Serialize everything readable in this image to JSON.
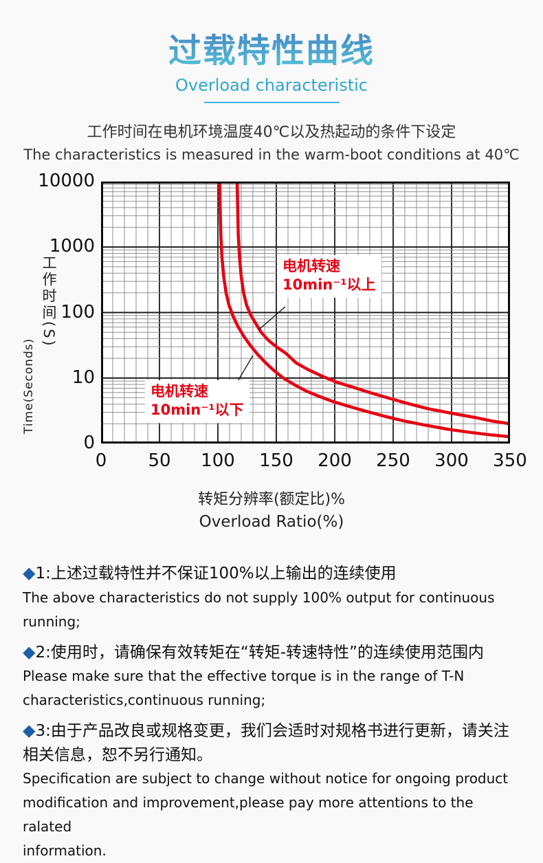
{
  "header": {
    "title": "过载特性曲线",
    "subtitle": "Overload characteristic"
  },
  "intro": {
    "line_cn": "工作时间在电机环境温度40℃以及热起动的条件下设定",
    "line_en": "The characteristics is measured in the warm-boot conditions at 40℃"
  },
  "chart_data": {
    "type": "line",
    "xlabel_cn": "转矩分辨率(额定比)%",
    "xlabel_en": "Overload Ratio(%)",
    "ylabel_cn": "工作时间(S)",
    "ylabel_en": "Time(Seconds)",
    "x_axis": {
      "min": 0,
      "max": 350,
      "major_step": 50,
      "minor_step": 10,
      "tick_labels": [
        "0",
        "50",
        "100",
        "150",
        "200",
        "250",
        "300",
        "350"
      ]
    },
    "y_axis": {
      "scale": "log",
      "min": 1,
      "max": 10000,
      "decades": 4,
      "tick_labels": [
        "10000",
        "1000",
        "100",
        "10",
        "0"
      ]
    },
    "grid": true,
    "curve_color": "#e60012",
    "grid_minor_color": "#8f8f8f",
    "grid_major_color": "#1a1a1a",
    "series": [
      {
        "name": "电机转速10min⁻¹以上",
        "points": [
          [
            116.5,
            10000
          ],
          [
            117,
            3500
          ],
          [
            117.5,
            1500
          ],
          [
            118.5,
            700
          ],
          [
            120,
            350
          ],
          [
            122,
            200
          ],
          [
            124.5,
            130
          ],
          [
            128,
            92
          ],
          [
            132,
            70
          ],
          [
            137,
            50
          ],
          [
            143,
            38
          ],
          [
            150,
            30
          ],
          [
            158,
            24
          ],
          [
            167,
            17
          ],
          [
            177,
            13.5
          ],
          [
            190,
            10.5
          ],
          [
            202,
            8.6
          ],
          [
            216,
            7.2
          ],
          [
            230,
            6.0
          ],
          [
            245,
            5.0
          ],
          [
            262,
            4.1
          ],
          [
            280,
            3.4
          ],
          [
            300,
            2.9
          ],
          [
            320,
            2.5
          ],
          [
            335,
            2.2
          ],
          [
            350,
            2.0
          ]
        ]
      },
      {
        "name": "电机转速10min⁻¹以下",
        "points": [
          [
            101.5,
            10000
          ],
          [
            102,
            3500
          ],
          [
            102.5,
            1500
          ],
          [
            103.5,
            700
          ],
          [
            105,
            350
          ],
          [
            107,
            200
          ],
          [
            109.5,
            130
          ],
          [
            113,
            88
          ],
          [
            117,
            62
          ],
          [
            122,
            44
          ],
          [
            128,
            31
          ],
          [
            134,
            23
          ],
          [
            141,
            17
          ],
          [
            148,
            13
          ],
          [
            156,
            10
          ],
          [
            165,
            8
          ],
          [
            175,
            6.4
          ],
          [
            186,
            5.3
          ],
          [
            198,
            4.4
          ],
          [
            212,
            3.7
          ],
          [
            227,
            3.1
          ],
          [
            243,
            2.6
          ],
          [
            260,
            2.2
          ],
          [
            278,
            1.9
          ],
          [
            297,
            1.65
          ],
          [
            316,
            1.48
          ],
          [
            333,
            1.36
          ],
          [
            350,
            1.27
          ]
        ]
      }
    ],
    "annotations": [
      {
        "line1": "电机转速",
        "line2": "10min⁻¹以上",
        "leader": [
          [
            268,
            182
          ],
          [
            230,
            215
          ]
        ]
      },
      {
        "line1": "电机转速",
        "line2": "10min⁻¹以下",
        "leader": [
          [
            196,
            295
          ],
          [
            221,
            253
          ]
        ]
      }
    ]
  },
  "notes": [
    {
      "marker": "◆",
      "num": "1:",
      "cn": "上述过载特性并不保证100%以上输出的连续使用",
      "en": [
        "The above characteristics do not supply 100% output for continuous running;"
      ]
    },
    {
      "marker": "◆",
      "num": "2:",
      "cn": "使用时，请确保有效转矩在“转矩-转速特性”的连续使用范围内",
      "en": [
        "Please make sure that the effective torque is in the range of T-N",
        "characteristics,continuous running;"
      ]
    },
    {
      "marker": "◆",
      "num": "3:",
      "cn": "由于产品改良或规格变更，我们会适时对规格书进行更新，请关注相关信息，恕不另行通知。",
      "en": [
        "Specification are subject to change without notice for ongoing product",
        "modification and improvement,please pay more attentions to the ralated",
        "information."
      ]
    }
  ]
}
